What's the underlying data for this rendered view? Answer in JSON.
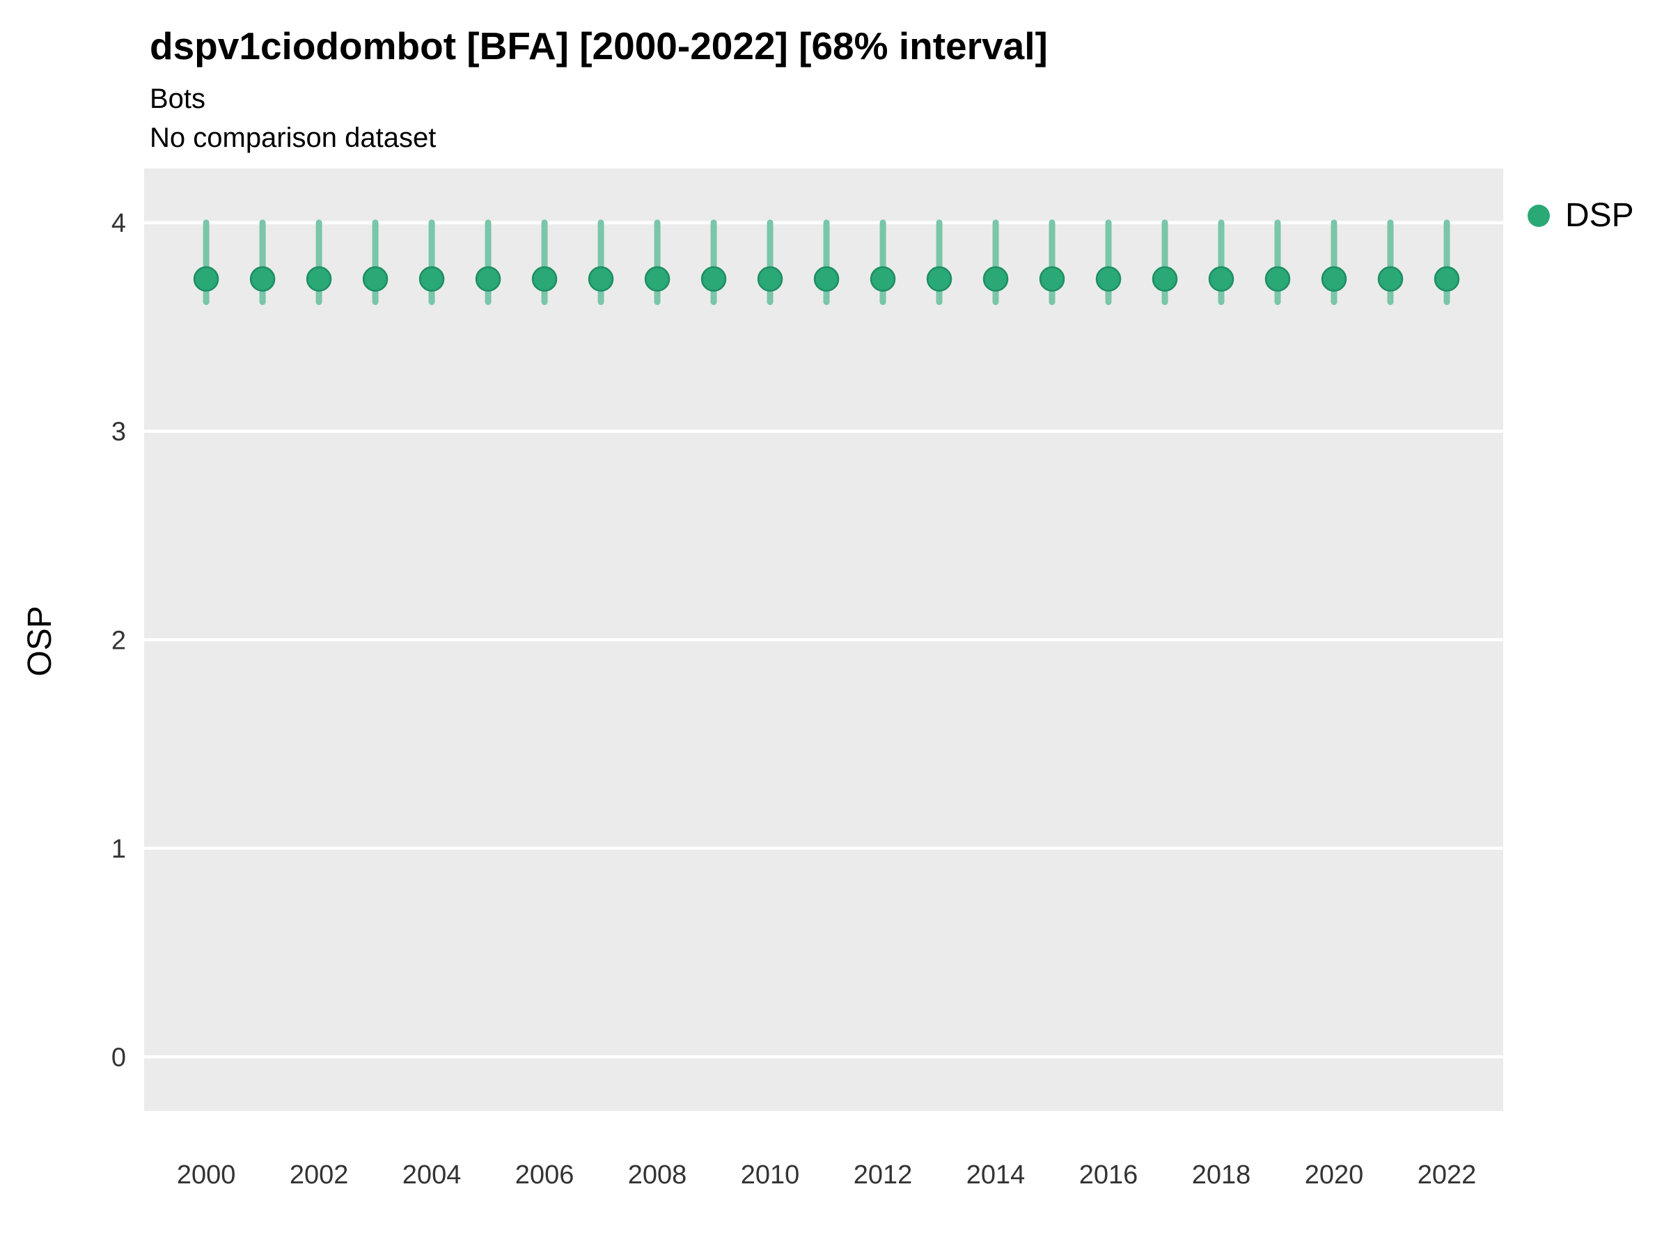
{
  "header": {
    "title": "dspv1ciodombot [BFA] [2000-2022] [68% interval]",
    "subtitle1": "Bots",
    "subtitle2": "No comparison dataset"
  },
  "axes": {
    "ylabel": "OSP"
  },
  "legend": {
    "items": [
      {
        "label": "DSP",
        "color": "#2aa876"
      }
    ]
  },
  "colors": {
    "panel_bg": "#ebebeb",
    "grid": "#ffffff",
    "point": "#2aa876",
    "point_stroke": "#1e8e63",
    "interval": "#79c6a8",
    "tick_text": "#333333"
  },
  "chart_data": {
    "type": "scatter",
    "title": "dspv1ciodombot [BFA] [2000-2022] [68% interval]",
    "subtitle": "Bots",
    "note": "No comparison dataset",
    "xlabel": "",
    "ylabel": "OSP",
    "grid": true,
    "legend_position": "right",
    "xlim": [
      1998.9,
      2023.0
    ],
    "ylim": [
      -0.26,
      4.26
    ],
    "xticks": [
      2000,
      2002,
      2004,
      2006,
      2008,
      2010,
      2012,
      2014,
      2016,
      2018,
      2020,
      2022
    ],
    "yticks": [
      0,
      1,
      2,
      3,
      4
    ],
    "series": [
      {
        "name": "DSP",
        "color": "#2aa876",
        "x": [
          2000,
          2001,
          2002,
          2003,
          2004,
          2005,
          2006,
          2007,
          2008,
          2009,
          2010,
          2011,
          2012,
          2013,
          2014,
          2015,
          2016,
          2017,
          2018,
          2019,
          2020,
          2021,
          2022
        ],
        "y": [
          3.73,
          3.73,
          3.73,
          3.73,
          3.73,
          3.73,
          3.73,
          3.73,
          3.73,
          3.73,
          3.73,
          3.73,
          3.73,
          3.73,
          3.73,
          3.73,
          3.73,
          3.73,
          3.73,
          3.73,
          3.73,
          3.73,
          3.73
        ],
        "y_low": [
          3.62,
          3.62,
          3.62,
          3.62,
          3.62,
          3.62,
          3.62,
          3.62,
          3.62,
          3.62,
          3.62,
          3.62,
          3.62,
          3.62,
          3.62,
          3.62,
          3.62,
          3.62,
          3.62,
          3.62,
          3.62,
          3.62,
          3.62
        ],
        "y_high": [
          4.0,
          4.0,
          4.0,
          4.0,
          4.0,
          4.0,
          4.0,
          4.0,
          4.0,
          4.0,
          4.0,
          4.0,
          4.0,
          4.0,
          4.0,
          4.0,
          4.0,
          4.0,
          4.0,
          4.0,
          4.0,
          4.0,
          4.0
        ]
      }
    ]
  }
}
